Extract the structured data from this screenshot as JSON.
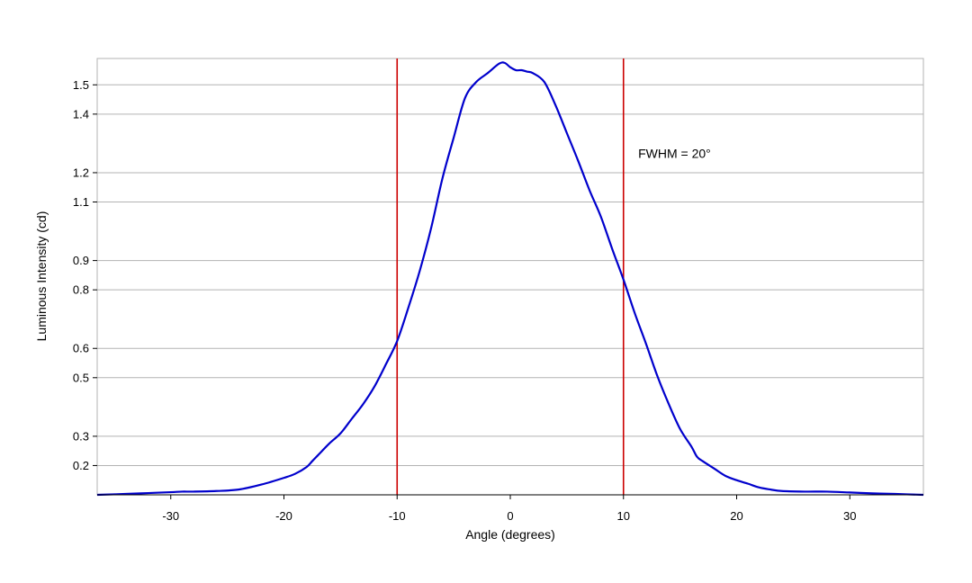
{
  "chart_data": {
    "type": "line",
    "title": "",
    "xlabel": "Angle (degrees)",
    "ylabel": "Luminous Intensity (cd)",
    "xlim": [
      -36.5,
      36.5
    ],
    "ylim": [
      0.1,
      1.59
    ],
    "x_ticks": [
      -30,
      -20,
      -10,
      0,
      10,
      20,
      30
    ],
    "x_tick_labels": [
      "-30",
      "-20",
      "-10",
      "0",
      "10",
      "20",
      "30"
    ],
    "y_ticks": [
      0.2,
      0.3,
      0.5,
      0.6,
      0.8,
      0.9,
      1.1,
      1.2,
      1.4,
      1.5
    ],
    "y_tick_labels": [
      "0.2",
      "0.3",
      "0.5",
      "0.6",
      "0.8",
      "0.9",
      "1.1",
      "1.2",
      "1.4",
      "1.5"
    ],
    "grid": "horizontal",
    "legend": "none",
    "series": [
      {
        "color": "#0000cc",
        "x": [
          -36.5,
          -34,
          -32,
          -30,
          -29,
          -28,
          -26,
          -24,
          -22,
          -20,
          -19,
          -18,
          -17.5,
          -17,
          -16,
          -15,
          -14,
          -13,
          -12,
          -11,
          -10,
          -9,
          -8,
          -7,
          -6,
          -5,
          -4,
          -3,
          -2,
          -1,
          -0.5,
          0,
          0.5,
          1,
          1.5,
          2,
          3,
          4,
          5,
          6,
          7,
          8,
          9,
          10,
          11,
          12,
          13,
          14,
          15,
          16,
          16.5,
          17,
          18,
          19,
          20,
          21,
          22,
          23,
          24,
          26,
          28,
          30,
          32,
          34,
          36.5
        ],
        "y": [
          0.1,
          0.103,
          0.106,
          0.109,
          0.111,
          0.111,
          0.113,
          0.118,
          0.135,
          0.158,
          0.172,
          0.195,
          0.215,
          0.235,
          0.275,
          0.31,
          0.36,
          0.41,
          0.47,
          0.545,
          0.625,
          0.74,
          0.865,
          1.01,
          1.18,
          1.32,
          1.455,
          1.51,
          1.54,
          1.572,
          1.575,
          1.56,
          1.55,
          1.55,
          1.545,
          1.54,
          1.51,
          1.43,
          1.335,
          1.24,
          1.14,
          1.05,
          0.94,
          0.835,
          0.72,
          0.615,
          0.505,
          0.41,
          0.325,
          0.265,
          0.23,
          0.215,
          0.19,
          0.165,
          0.15,
          0.138,
          0.125,
          0.118,
          0.113,
          0.111,
          0.111,
          0.108,
          0.105,
          0.103,
          0.1
        ]
      }
    ],
    "vertical_lines": [
      {
        "x": -10,
        "color": "#cc0000"
      },
      {
        "x": 10,
        "color": "#cc0000"
      }
    ],
    "annotations": [
      {
        "text": "FWHM = 20°",
        "x": 11.3,
        "y": 1.25
      }
    ]
  },
  "colors": {
    "grid": "#b3b3b3",
    "frame": "#b3b3b3",
    "axis": "#000000"
  }
}
